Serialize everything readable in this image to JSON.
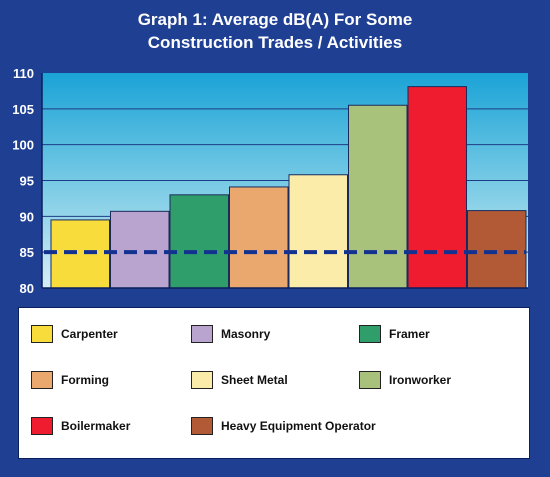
{
  "chart_data": {
    "type": "bar",
    "title_lines": [
      "Graph 1: Average dB(A) For Some",
      "Construction Trades / Activities"
    ],
    "categories": [
      "Carpenter",
      "Masonry",
      "Framer",
      "Forming",
      "Sheet Metal",
      "Ironworker",
      "Boilermaker",
      "Heavy Equipment Operator"
    ],
    "values": [
      89.5,
      90.7,
      93,
      94.1,
      95.8,
      105.5,
      108.1,
      90.8
    ],
    "colors": [
      "#f7dc3c",
      "#b9a3cf",
      "#2f9e6b",
      "#eaa86f",
      "#fbecaa",
      "#a9c27b",
      "#ee1c2e",
      "#b25a36"
    ],
    "ylim": [
      80,
      110
    ],
    "yticks": [
      80,
      85,
      90,
      95,
      100,
      105,
      110
    ],
    "reference_line": 85,
    "grid": true,
    "legend_position": "bottom"
  }
}
